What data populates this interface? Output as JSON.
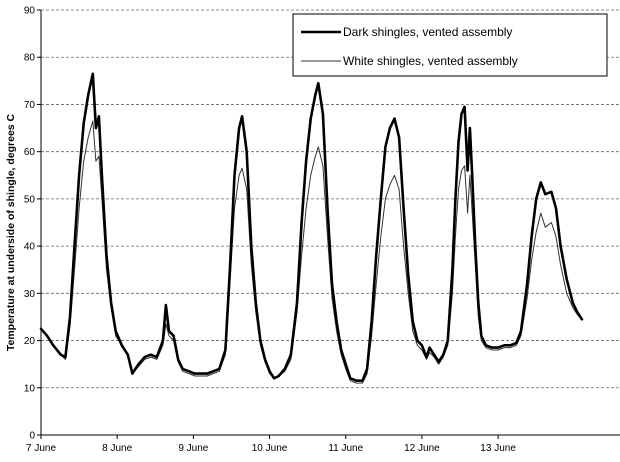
{
  "chart_data": {
    "type": "line",
    "title": "",
    "xlabel": "",
    "ylabel": "Temperature at underside of shingle, degrees C",
    "ylim": [
      0,
      90
    ],
    "yticks": [
      0,
      10,
      20,
      30,
      40,
      50,
      60,
      70,
      80,
      90
    ],
    "xlim": [
      0,
      7.6
    ],
    "xticks": [
      {
        "value": 0,
        "label": "7 June"
      },
      {
        "value": 1,
        "label": "8 June"
      },
      {
        "value": 2,
        "label": "9 June"
      },
      {
        "value": 3,
        "label": "10 June"
      },
      {
        "value": 4,
        "label": "11 June"
      },
      {
        "value": 5,
        "label": "12 June"
      },
      {
        "value": 6,
        "label": "13 June"
      }
    ],
    "grid": "horizontal",
    "legend_position": "top-right",
    "series": [
      {
        "name": "Dark shingles, vented assembly",
        "color": "#000000",
        "style": "thick",
        "points": [
          [
            0.0,
            22.5
          ],
          [
            0.08,
            21
          ],
          [
            0.16,
            19
          ],
          [
            0.26,
            17
          ],
          [
            0.32,
            16.5
          ],
          [
            0.38,
            25
          ],
          [
            0.44,
            40
          ],
          [
            0.5,
            55
          ],
          [
            0.56,
            66
          ],
          [
            0.62,
            72
          ],
          [
            0.68,
            76.5
          ],
          [
            0.72,
            65
          ],
          [
            0.76,
            67.5
          ],
          [
            0.8,
            55
          ],
          [
            0.86,
            38
          ],
          [
            0.92,
            28
          ],
          [
            0.98,
            22
          ],
          [
            1.06,
            19
          ],
          [
            1.14,
            17
          ],
          [
            1.2,
            13
          ],
          [
            1.28,
            15
          ],
          [
            1.36,
            16.5
          ],
          [
            1.44,
            17
          ],
          [
            1.52,
            16.5
          ],
          [
            1.6,
            20
          ],
          [
            1.64,
            27.5
          ],
          [
            1.68,
            22
          ],
          [
            1.74,
            21
          ],
          [
            1.8,
            16
          ],
          [
            1.86,
            14
          ],
          [
            1.94,
            13.5
          ],
          [
            2.02,
            13
          ],
          [
            2.1,
            13
          ],
          [
            2.18,
            13
          ],
          [
            2.26,
            13.5
          ],
          [
            2.34,
            14
          ],
          [
            2.42,
            18
          ],
          [
            2.48,
            35
          ],
          [
            2.54,
            55
          ],
          [
            2.6,
            65
          ],
          [
            2.64,
            67.5
          ],
          [
            2.7,
            60
          ],
          [
            2.76,
            40
          ],
          [
            2.82,
            28
          ],
          [
            2.88,
            20
          ],
          [
            2.94,
            16
          ],
          [
            3.0,
            13.5
          ],
          [
            3.06,
            12
          ],
          [
            3.12,
            12.5
          ],
          [
            3.2,
            14
          ],
          [
            3.28,
            17
          ],
          [
            3.36,
            28
          ],
          [
            3.42,
            45
          ],
          [
            3.48,
            58
          ],
          [
            3.54,
            67
          ],
          [
            3.6,
            72
          ],
          [
            3.64,
            74.5
          ],
          [
            3.7,
            68
          ],
          [
            3.76,
            48
          ],
          [
            3.82,
            32
          ],
          [
            3.88,
            24
          ],
          [
            3.94,
            18
          ],
          [
            4.0,
            15
          ],
          [
            4.06,
            12
          ],
          [
            4.14,
            11.5
          ],
          [
            4.22,
            11.5
          ],
          [
            4.28,
            14
          ],
          [
            4.34,
            24
          ],
          [
            4.4,
            38
          ],
          [
            4.46,
            50
          ],
          [
            4.52,
            61
          ],
          [
            4.58,
            65
          ],
          [
            4.64,
            67
          ],
          [
            4.7,
            63
          ],
          [
            4.76,
            48
          ],
          [
            4.82,
            34
          ],
          [
            4.88,
            24
          ],
          [
            4.94,
            20
          ],
          [
            5.0,
            19
          ],
          [
            5.06,
            16.5
          ],
          [
            5.1,
            18.5
          ],
          [
            5.16,
            17
          ],
          [
            5.22,
            15.5
          ],
          [
            5.28,
            17
          ],
          [
            5.34,
            20
          ],
          [
            5.4,
            35
          ],
          [
            5.44,
            50
          ],
          [
            5.48,
            62
          ],
          [
            5.52,
            68
          ],
          [
            5.56,
            69.5
          ],
          [
            5.6,
            56
          ],
          [
            5.63,
            65
          ],
          [
            5.66,
            55
          ],
          [
            5.7,
            40
          ],
          [
            5.74,
            28
          ],
          [
            5.78,
            21
          ],
          [
            5.84,
            19
          ],
          [
            5.92,
            18.5
          ],
          [
            6.0,
            18.5
          ],
          [
            6.08,
            19
          ],
          [
            6.16,
            19
          ],
          [
            6.24,
            19.5
          ],
          [
            6.3,
            22
          ],
          [
            6.38,
            32
          ],
          [
            6.44,
            42
          ],
          [
            6.5,
            50
          ],
          [
            6.56,
            53.5
          ],
          [
            6.62,
            51
          ],
          [
            6.7,
            51.5
          ],
          [
            6.76,
            48
          ],
          [
            6.82,
            40
          ],
          [
            6.9,
            33
          ],
          [
            6.98,
            28
          ],
          [
            7.04,
            26
          ],
          [
            7.1,
            24.5
          ]
        ]
      },
      {
        "name": "White shingles, vented assembly",
        "color": "#333333",
        "style": "thin",
        "points": [
          [
            0.0,
            22.5
          ],
          [
            0.08,
            21
          ],
          [
            0.16,
            19
          ],
          [
            0.26,
            17
          ],
          [
            0.32,
            16
          ],
          [
            0.38,
            23
          ],
          [
            0.44,
            35
          ],
          [
            0.5,
            48
          ],
          [
            0.56,
            58
          ],
          [
            0.62,
            63
          ],
          [
            0.68,
            66.5
          ],
          [
            0.72,
            58
          ],
          [
            0.76,
            59
          ],
          [
            0.8,
            50
          ],
          [
            0.86,
            35
          ],
          [
            0.92,
            27
          ],
          [
            0.98,
            21
          ],
          [
            1.06,
            19
          ],
          [
            1.14,
            17
          ],
          [
            1.2,
            13
          ],
          [
            1.28,
            14.5
          ],
          [
            1.36,
            16
          ],
          [
            1.44,
            16.5
          ],
          [
            1.52,
            16
          ],
          [
            1.6,
            19
          ],
          [
            1.64,
            23.5
          ],
          [
            1.68,
            21
          ],
          [
            1.74,
            20
          ],
          [
            1.8,
            15.5
          ],
          [
            1.86,
            13.5
          ],
          [
            1.94,
            13
          ],
          [
            2.02,
            12.5
          ],
          [
            2.1,
            12.5
          ],
          [
            2.18,
            12.5
          ],
          [
            2.26,
            13
          ],
          [
            2.34,
            13.5
          ],
          [
            2.42,
            17
          ],
          [
            2.48,
            32
          ],
          [
            2.54,
            48
          ],
          [
            2.6,
            55
          ],
          [
            2.64,
            56.5
          ],
          [
            2.7,
            52
          ],
          [
            2.76,
            36
          ],
          [
            2.82,
            26
          ],
          [
            2.88,
            19
          ],
          [
            2.94,
            15.5
          ],
          [
            3.0,
            13
          ],
          [
            3.06,
            12
          ],
          [
            3.12,
            12.5
          ],
          [
            3.2,
            13.5
          ],
          [
            3.28,
            16
          ],
          [
            3.36,
            26
          ],
          [
            3.42,
            38
          ],
          [
            3.48,
            48
          ],
          [
            3.54,
            55
          ],
          [
            3.6,
            59
          ],
          [
            3.64,
            61
          ],
          [
            3.7,
            57
          ],
          [
            3.76,
            42
          ],
          [
            3.82,
            29
          ],
          [
            3.88,
            22
          ],
          [
            3.94,
            17
          ],
          [
            4.0,
            14
          ],
          [
            4.06,
            11.5
          ],
          [
            4.14,
            11
          ],
          [
            4.22,
            11
          ],
          [
            4.28,
            13
          ],
          [
            4.34,
            21
          ],
          [
            4.4,
            32
          ],
          [
            4.46,
            42
          ],
          [
            4.52,
            50
          ],
          [
            4.58,
            53
          ],
          [
            4.64,
            55
          ],
          [
            4.7,
            52
          ],
          [
            4.76,
            40
          ],
          [
            4.82,
            30
          ],
          [
            4.88,
            22
          ],
          [
            4.94,
            19
          ],
          [
            5.0,
            18
          ],
          [
            5.06,
            16
          ],
          [
            5.1,
            17.5
          ],
          [
            5.16,
            16.5
          ],
          [
            5.22,
            15
          ],
          [
            5.28,
            16.5
          ],
          [
            5.34,
            19
          ],
          [
            5.4,
            30
          ],
          [
            5.44,
            42
          ],
          [
            5.48,
            52
          ],
          [
            5.52,
            56
          ],
          [
            5.56,
            57
          ],
          [
            5.6,
            47
          ],
          [
            5.63,
            55
          ],
          [
            5.66,
            47
          ],
          [
            5.7,
            36
          ],
          [
            5.74,
            25
          ],
          [
            5.78,
            20
          ],
          [
            5.84,
            18.5
          ],
          [
            5.92,
            18
          ],
          [
            6.0,
            18
          ],
          [
            6.08,
            18.5
          ],
          [
            6.16,
            18.5
          ],
          [
            6.24,
            19
          ],
          [
            6.3,
            21
          ],
          [
            6.38,
            29
          ],
          [
            6.44,
            37
          ],
          [
            6.5,
            43
          ],
          [
            6.56,
            47
          ],
          [
            6.62,
            44
          ],
          [
            6.7,
            45
          ],
          [
            6.76,
            42
          ],
          [
            6.82,
            36
          ],
          [
            6.9,
            30
          ],
          [
            6.98,
            27
          ],
          [
            7.04,
            25.5
          ],
          [
            7.1,
            24.5
          ]
        ]
      }
    ]
  }
}
